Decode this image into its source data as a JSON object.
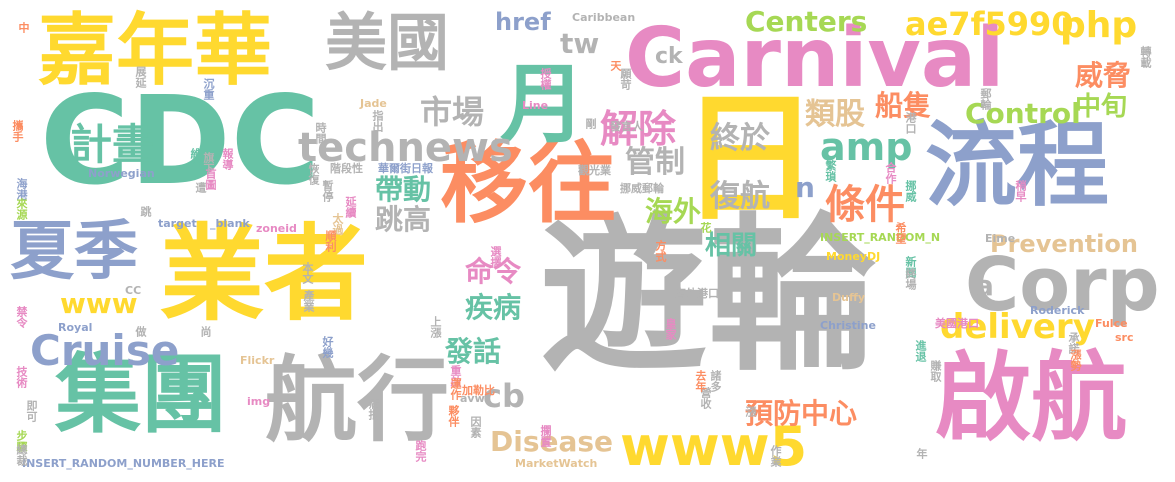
{
  "palette": {
    "green": "#66c2a5",
    "orange": "#fc8d62",
    "blue": "#8da0cb",
    "pink": "#e78ac3",
    "lime": "#a6d854",
    "yellow": "#ffd92f",
    "tan": "#e5c494",
    "gray": "#b3b3b3"
  },
  "words": [
    {
      "text": "遊輪",
      "color": "#b3b3b3"
    },
    {
      "text": "業者",
      "color": "#ffd92f"
    },
    {
      "text": "CDC",
      "color": "#66c2a5"
    },
    {
      "text": "Carnival",
      "color": "#e78ac3"
    },
    {
      "text": "嘉年華",
      "color": "#ffd92f"
    },
    {
      "text": "美國",
      "color": "#b3b3b3"
    },
    {
      "text": "流程",
      "color": "#8da0cb"
    },
    {
      "text": "移往",
      "color": "#fc8d62"
    },
    {
      "text": "啟航",
      "color": "#e78ac3"
    },
    {
      "text": "航行",
      "color": "#b3b3b3"
    },
    {
      "text": "集團",
      "color": "#66c2a5"
    },
    {
      "text": "日",
      "color": "#ffd92f"
    },
    {
      "text": "月",
      "color": "#66c2a5"
    },
    {
      "text": "夏季",
      "color": "#8da0cb"
    },
    {
      "text": "Corp",
      "color": "#b3b3b3"
    },
    {
      "text": "www5",
      "color": "#ffd92f"
    },
    {
      "text": "technews",
      "color": "#b3b3b3"
    },
    {
      "text": "計畫",
      "color": "#66c2a5"
    },
    {
      "text": "Cruise",
      "color": "#8da0cb"
    },
    {
      "text": "delivery",
      "color": "#ffd92f"
    },
    {
      "text": "amp",
      "color": "#66c2a5"
    },
    {
      "text": "php",
      "color": "#ffd92f"
    },
    {
      "text": "ae7f5990",
      "color": "#ffd92f"
    },
    {
      "text": "Centers",
      "color": "#a6d854"
    },
    {
      "text": "Control",
      "color": "#a6d854"
    },
    {
      "text": "Prevention",
      "color": "#e5c494"
    },
    {
      "text": "Disease",
      "color": "#e5c494"
    },
    {
      "text": "解除",
      "color": "#e78ac3"
    },
    {
      "text": "條件",
      "color": "#fc8d62"
    },
    {
      "text": "市場",
      "color": "#b3b3b3"
    },
    {
      "text": "終於",
      "color": "#b3b3b3"
    },
    {
      "text": "復航",
      "color": "#b3b3b3"
    },
    {
      "text": "管制",
      "color": "#b3b3b3"
    },
    {
      "text": "帶動",
      "color": "#66c2a5"
    },
    {
      "text": "跳高",
      "color": "#b3b3b3"
    },
    {
      "text": "海外",
      "color": "#a6d854"
    },
    {
      "text": "相關",
      "color": "#66c2a5"
    },
    {
      "text": "命令",
      "color": "#e78ac3"
    },
    {
      "text": "疾病",
      "color": "#66c2a5"
    },
    {
      "text": "發話",
      "color": "#66c2a5"
    },
    {
      "text": "預防中心",
      "color": "#fc8d62"
    },
    {
      "text": "類股",
      "color": "#e5c494"
    },
    {
      "text": "船隻",
      "color": "#fc8d62"
    },
    {
      "text": "威脅",
      "color": "#fc8d62"
    },
    {
      "text": "中旬",
      "color": "#a6d854"
    },
    {
      "text": "www",
      "color": "#ffd92f"
    },
    {
      "text": "cb",
      "color": "#b3b3b3"
    },
    {
      "text": "href",
      "color": "#8da0cb"
    },
    {
      "text": "tw",
      "color": "#b3b3b3"
    },
    {
      "text": "ck",
      "color": "#b3b3b3"
    },
    {
      "text": "n",
      "color": "#8da0cb"
    },
    {
      "text": "a",
      "color": "#b3b3b3"
    },
    {
      "text": "Caribbean",
      "color": "#b3b3b3"
    },
    {
      "text": "INSERT_RANDOM_N",
      "color": "#a6d854"
    },
    {
      "text": "INSERT_RANDOM_NUMBER_HERE",
      "color": "#8da0cb"
    },
    {
      "text": "Norwegian",
      "color": "#8da0cb"
    },
    {
      "text": "MoneyDJ",
      "color": "#ffd92f"
    },
    {
      "text": "MarketWatch",
      "color": "#e5c494"
    },
    {
      "text": "Christine",
      "color": "#8da0cb"
    },
    {
      "text": "Roderick",
      "color": "#8da0cb"
    },
    {
      "text": "Royal",
      "color": "#8da0cb"
    },
    {
      "text": "Flickr",
      "color": "#e5c494"
    },
    {
      "text": "Duffy",
      "color": "#e5c494"
    },
    {
      "text": "Fulce",
      "color": "#fc8d62"
    },
    {
      "text": "Jade",
      "color": "#e5c494"
    },
    {
      "text": "Line",
      "color": "#e78ac3"
    },
    {
      "text": "target",
      "color": "#8da0cb"
    },
    {
      "text": "_blank",
      "color": "#8da0cb"
    },
    {
      "text": "zoneid",
      "color": "#e78ac3"
    },
    {
      "text": "img",
      "color": "#e78ac3"
    },
    {
      "text": "avw",
      "color": "#b3b3b3"
    },
    {
      "text": "src",
      "color": "#fc8d62"
    },
    {
      "text": "Eime",
      "color": "#b3b3b3"
    },
    {
      "text": "CC",
      "color": "#b3b3b3"
    },
    {
      "text": "華爾街日報",
      "color": "#8da0cb"
    },
    {
      "text": "海外港口",
      "color": "#b3b3b3"
    },
    {
      "text": "美國港口",
      "color": "#e78ac3"
    },
    {
      "text": "挪威郵輪",
      "color": "#b3b3b3"
    },
    {
      "text": "觀光業",
      "color": "#b3b3b3"
    },
    {
      "text": "發言人",
      "color": "#b3b3b3"
    },
    {
      "text": "階段性",
      "color": "#b3b3b3"
    },
    {
      "text": "加勒比",
      "color": "#fc8d62"
    },
    {
      "text": "維谷",
      "color": "#66c2a5"
    },
    {
      "text": "報導",
      "color": "#e78ac3"
    },
    {
      "text": "首圖",
      "color": "#e78ac3"
    },
    {
      "text": "旗下",
      "color": "#b3b3b3"
    },
    {
      "text": "時間",
      "color": "#b3b3b3"
    },
    {
      "text": "恢復",
      "color": "#b3b3b3"
    },
    {
      "text": "指出",
      "color": "#b3b3b3"
    },
    {
      "text": "授權",
      "color": "#e78ac3"
    },
    {
      "text": "願苛",
      "color": "#b3b3b3"
    },
    {
      "text": "沉重",
      "color": "#8da0cb"
    },
    {
      "text": "展延",
      "color": "#b3b3b3"
    },
    {
      "text": "攜手",
      "color": "#fc8d62"
    },
    {
      "text": "海港",
      "color": "#8da0cb"
    },
    {
      "text": "來源",
      "color": "#a6d854"
    },
    {
      "text": "禁令",
      "color": "#e78ac3"
    },
    {
      "text": "技術",
      "color": "#e78ac3"
    },
    {
      "text": "即可",
      "color": "#b3b3b3"
    },
    {
      "text": "步驟",
      "color": "#a6d854"
    },
    {
      "text": "總裁",
      "color": "#b3b3b3"
    },
    {
      "text": "延續",
      "color": "#e78ac3"
    },
    {
      "text": "暫停",
      "color": "#b3b3b3"
    },
    {
      "text": "太過",
      "color": "#e5c494"
    },
    {
      "text": "順利",
      "color": "#fc8d62"
    },
    {
      "text": "產業",
      "color": "#b3b3b3"
    },
    {
      "text": "上漲",
      "color": "#b3b3b3"
    },
    {
      "text": "好幾",
      "color": "#8da0cb"
    },
    {
      "text": "重啟",
      "color": "#e78ac3"
    },
    {
      "text": "運作",
      "color": "#fc8d62"
    },
    {
      "text": "病批",
      "color": "#b3b3b3"
    },
    {
      "text": "夥伴",
      "color": "#fc8d62"
    },
    {
      "text": "因素",
      "color": "#b3b3b3"
    },
    {
      "text": "攔置",
      "color": "#e78ac3"
    },
    {
      "text": "跑完",
      "color": "#e78ac3"
    },
    {
      "text": "營收",
      "color": "#b3b3b3"
    },
    {
      "text": "去年",
      "color": "#fc8d62"
    },
    {
      "text": "諸多",
      "color": "#b3b3b3"
    },
    {
      "text": "皇家",
      "color": "#e78ac3"
    },
    {
      "text": "作業",
      "color": "#b3b3b3"
    },
    {
      "text": "方式",
      "color": "#fc8d62"
    },
    {
      "text": "選擇",
      "color": "#e78ac3"
    },
    {
      "text": "本文",
      "color": "#b3b3b3"
    },
    {
      "text": "繁瑣",
      "color": "#66c2a5"
    },
    {
      "text": "合作",
      "color": "#e78ac3"
    },
    {
      "text": "挪威",
      "color": "#66c2a5"
    },
    {
      "text": "稍早",
      "color": "#e78ac3"
    },
    {
      "text": "希望",
      "color": "#fc8d62"
    },
    {
      "text": "新聞",
      "color": "#66c2a5"
    },
    {
      "text": "終場",
      "color": "#b3b3b3"
    },
    {
      "text": "承諾",
      "color": "#b3b3b3"
    },
    {
      "text": "漲勢",
      "color": "#fc8d62"
    },
    {
      "text": "進退",
      "color": "#66c2a5"
    },
    {
      "text": "賺取",
      "color": "#b3b3b3"
    },
    {
      "text": "港口",
      "color": "#b3b3b3"
    },
    {
      "text": "郵輪",
      "color": "#b3b3b3"
    },
    {
      "text": "轉載",
      "color": "#b3b3b3"
    },
    {
      "text": "中",
      "color": "#fc8d62"
    },
    {
      "text": "剛",
      "color": "#b3b3b3"
    },
    {
      "text": "天",
      "color": "#fc8d62"
    },
    {
      "text": "遭",
      "color": "#b3b3b3"
    },
    {
      "text": "跳",
      "color": "#b3b3b3"
    },
    {
      "text": "尚",
      "color": "#b3b3b3"
    },
    {
      "text": "做",
      "color": "#b3b3b3"
    },
    {
      "text": "花",
      "color": "#a6d854"
    },
    {
      "text": "漲",
      "color": "#b3b3b3"
    },
    {
      "text": "年",
      "color": "#b3b3b3"
    }
  ]
}
